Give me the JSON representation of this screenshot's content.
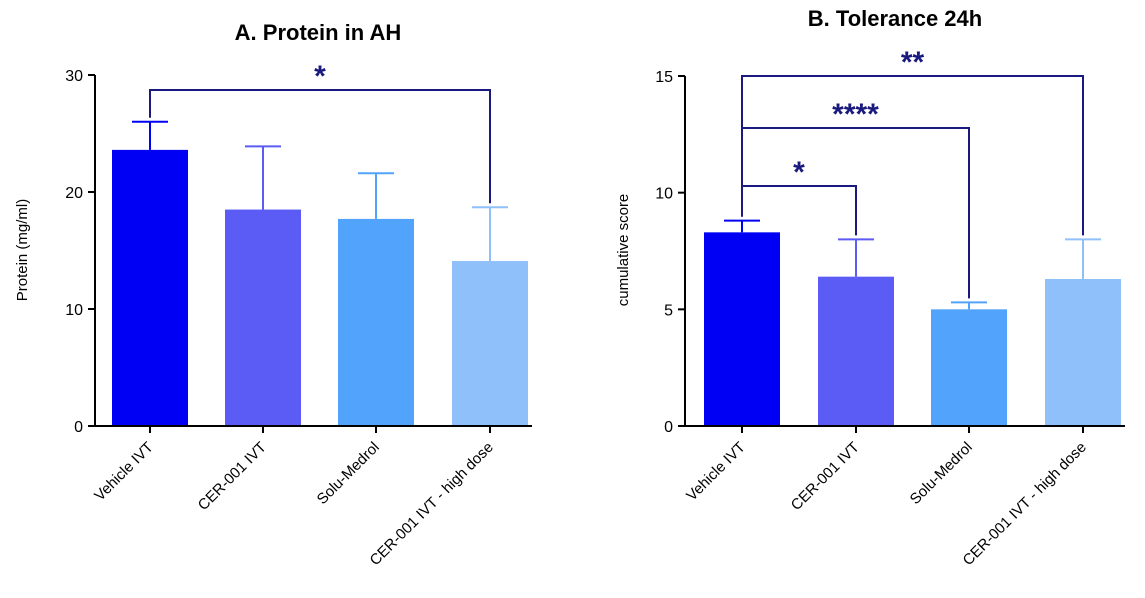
{
  "colors": {
    "bars": [
      "#0000f5",
      "#5b5bf5",
      "#52a3fb",
      "#8fc0f9"
    ],
    "sig": "#1a1a7e",
    "axis": "#000000"
  },
  "chart_data": [
    {
      "type": "bar",
      "title": "A. Protein in AH",
      "ylabel": "Protein (mg/ml)",
      "ylim": [
        0,
        30
      ],
      "yticks": [
        "0",
        "10",
        "20",
        "30"
      ],
      "categories": [
        "Vehicle IVT",
        "CER-001 IVT",
        "Solu-Medrol",
        "CER-001 IVT - high dose"
      ],
      "values": [
        23.6,
        18.5,
        17.7,
        14.1
      ],
      "error_upper": [
        26.0,
        23.9,
        21.6,
        18.7
      ],
      "significance": [
        {
          "from": 0,
          "to": 3,
          "label": "*"
        }
      ]
    },
    {
      "type": "bar",
      "title": "B. Tolerance 24h",
      "ylabel": "cumulative score",
      "ylim": [
        0,
        15
      ],
      "yticks": [
        "0",
        "5",
        "10",
        "15"
      ],
      "categories": [
        "Vehicle IVT",
        "CER-001 IVT",
        "Solu-Medrol",
        "CER-001 IVT - high dose"
      ],
      "values": [
        8.3,
        6.4,
        5.0,
        6.3
      ],
      "error_upper": [
        8.8,
        8.0,
        5.3,
        8.0
      ],
      "significance": [
        {
          "from": 0,
          "to": 1,
          "label": "*"
        },
        {
          "from": 0,
          "to": 2,
          "label": "****"
        },
        {
          "from": 0,
          "to": 3,
          "label": "**"
        }
      ]
    }
  ]
}
